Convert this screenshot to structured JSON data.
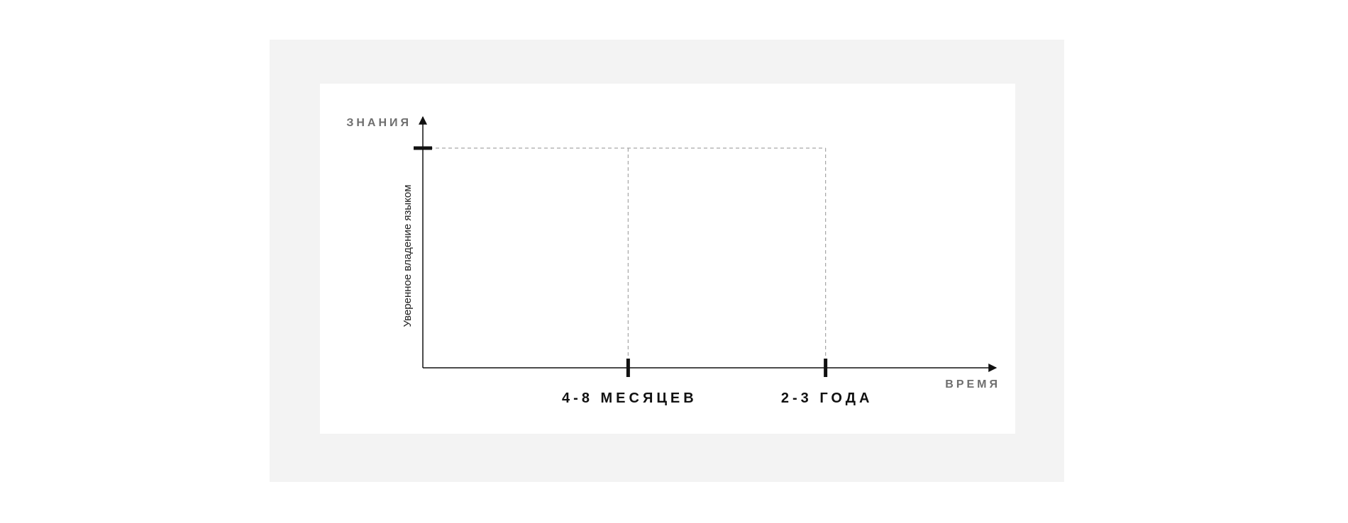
{
  "chart_data": {
    "type": "line",
    "title": "",
    "xlabel": "ВРЕМЯ",
    "ylabel": "ЗНАНИЯ",
    "x_ticks": [
      {
        "label": "4-8 МЕСЯЦЕВ",
        "value": 0.39
      },
      {
        "label": "2-3 ГОДА",
        "value": 0.765
      }
    ],
    "y_ticks": [
      {
        "label": "Уверенное владение языком",
        "value": 1.0
      }
    ],
    "xlim": [
      0,
      1
    ],
    "ylim": [
      0,
      1.13
    ],
    "grid": false,
    "guide_lines": "dashed",
    "colors": {
      "axis": "#111111",
      "guide": "#a6a6a6",
      "frame": "#f3f3f3"
    }
  }
}
